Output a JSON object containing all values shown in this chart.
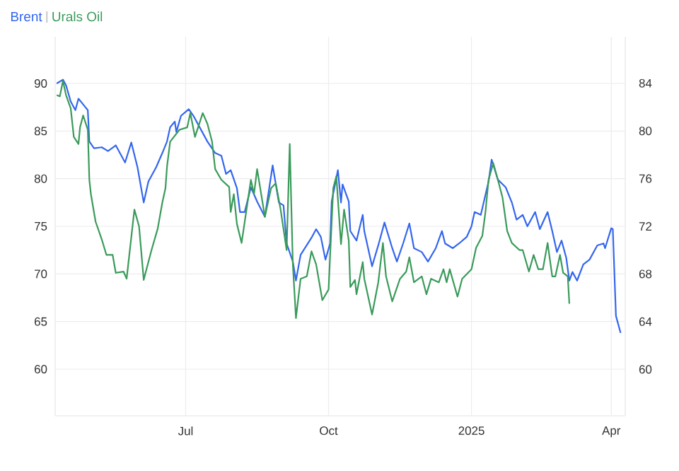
{
  "chart_data": {
    "type": "line",
    "xlim": [
      "2024-04-08",
      "2025-04-10"
    ],
    "xticks": [
      {
        "value": "2024-07-01",
        "label": "Jul"
      },
      {
        "value": "2024-10-01",
        "label": "Oct"
      },
      {
        "value": "2025-01-01",
        "label": "2025"
      },
      {
        "value": "2025-04-01",
        "label": "Apr"
      }
    ],
    "ylim": [
      55.1,
      94.9
    ],
    "yticks": [
      60,
      65,
      70,
      75,
      80,
      85,
      90
    ],
    "y2lim": [
      56.1,
      87.9
    ],
    "y2ticks": [
      60,
      64,
      68,
      72,
      76,
      80,
      84
    ],
    "grid": true,
    "legend": "top left",
    "marker": "none",
    "line_style": "solid",
    "series": [
      {
        "name": "Brent",
        "color": "#3366ee",
        "x": [
          "2024-04-09",
          "2024-04-13",
          "2024-04-15",
          "2024-04-18",
          "2024-04-21",
          "2024-04-23",
          "2024-04-26",
          "2024-04-29",
          "2024-04-30",
          "2024-05-03",
          "2024-05-08",
          "2024-05-12",
          "2024-05-17",
          "2024-05-23",
          "2024-05-27",
          "2024-05-31",
          "2024-06-04",
          "2024-06-07",
          "2024-06-12",
          "2024-06-16",
          "2024-06-19",
          "2024-06-21",
          "2024-06-24",
          "2024-06-25",
          "2024-06-28",
          "2024-07-03",
          "2024-07-06",
          "2024-07-15",
          "2024-07-20",
          "2024-07-24",
          "2024-07-27",
          "2024-07-30",
          "2024-08-03",
          "2024-08-05",
          "2024-08-08",
          "2024-08-12",
          "2024-08-16",
          "2024-08-21",
          "2024-08-26",
          "2024-08-30",
          "2024-09-02",
          "2024-09-04",
          "2024-09-08",
          "2024-09-10",
          "2024-09-13",
          "2024-09-20",
          "2024-09-23",
          "2024-09-26",
          "2024-09-29",
          "2024-10-02",
          "2024-10-03",
          "2024-10-07",
          "2024-10-09",
          "2024-10-10",
          "2024-10-14",
          "2024-10-15",
          "2024-10-19",
          "2024-10-23",
          "2024-10-24",
          "2024-10-29",
          "2024-11-02",
          "2024-11-06",
          "2024-11-11",
          "2024-11-14",
          "2024-11-18",
          "2024-11-22",
          "2024-11-25",
          "2024-11-30",
          "2024-12-04",
          "2024-12-09",
          "2024-12-13",
          "2024-12-15",
          "2024-12-20",
          "2024-12-24",
          "2024-12-29",
          "2025-01-01",
          "2025-01-03",
          "2025-01-07",
          "2025-01-12",
          "2025-01-14",
          "2025-01-18",
          "2025-01-23",
          "2025-01-27",
          "2025-01-30",
          "2025-02-03",
          "2025-02-06",
          "2025-02-11",
          "2025-02-14",
          "2025-02-19",
          "2025-02-22",
          "2025-02-25",
          "2025-02-28",
          "2025-03-03",
          "2025-03-05",
          "2025-03-07",
          "2025-03-10",
          "2025-03-14",
          "2025-03-18",
          "2025-03-23",
          "2025-03-27",
          "2025-03-28",
          "2025-04-01",
          "2025-04-02",
          "2025-04-04",
          "2025-04-07"
        ],
        "values": [
          90.0,
          90.4,
          89.8,
          88.1,
          87.2,
          88.4,
          87.8,
          87.2,
          83.9,
          83.2,
          83.3,
          82.9,
          83.5,
          81.7,
          83.8,
          81.2,
          77.5,
          79.7,
          81.2,
          82.7,
          83.9,
          85.4,
          86.0,
          84.9,
          86.6,
          87.3,
          86.6,
          83.9,
          82.7,
          82.4,
          80.5,
          80.9,
          79.0,
          76.5,
          76.5,
          79.1,
          77.6,
          76.0,
          81.4,
          77.5,
          77.2,
          73.2,
          71.3,
          69.3,
          72.0,
          73.8,
          74.7,
          73.9,
          71.5,
          73.2,
          77.6,
          80.9,
          77.5,
          79.4,
          77.6,
          74.5,
          73.5,
          76.2,
          74.5,
          70.8,
          73.0,
          75.4,
          72.7,
          71.3,
          73.2,
          75.3,
          72.7,
          72.3,
          71.3,
          72.7,
          74.5,
          73.2,
          72.7,
          73.2,
          73.9,
          75.0,
          76.5,
          76.2,
          79.7,
          82.0,
          79.9,
          79.1,
          77.5,
          75.7,
          76.2,
          75.0,
          76.5,
          74.7,
          76.5,
          74.5,
          72.3,
          73.5,
          71.7,
          69.3,
          70.2,
          69.3,
          71.0,
          71.5,
          73.0,
          73.2,
          72.7,
          74.8,
          74.7,
          65.6,
          63.8
        ]
      },
      {
        "name": "Urals Oil",
        "color": "#3a9a5a",
        "axis": "y2",
        "x": [
          "2024-04-09",
          "2024-04-11",
          "2024-04-13",
          "2024-04-15",
          "2024-04-18",
          "2024-04-20",
          "2024-04-23",
          "2024-04-24",
          "2024-04-26",
          "2024-04-29",
          "2024-04-30",
          "2024-05-01",
          "2024-05-04",
          "2024-05-08",
          "2024-05-11",
          "2024-05-15",
          "2024-05-17",
          "2024-05-22",
          "2024-05-24",
          "2024-05-29",
          "2024-06-01",
          "2024-06-04",
          "2024-06-09",
          "2024-06-13",
          "2024-06-16",
          "2024-06-18",
          "2024-06-19",
          "2024-06-21",
          "2024-06-27",
          "2024-07-02",
          "2024-07-04",
          "2024-07-07",
          "2024-07-12",
          "2024-07-15",
          "2024-07-18",
          "2024-07-20",
          "2024-07-24",
          "2024-07-29",
          "2024-07-30",
          "2024-08-01",
          "2024-08-03",
          "2024-08-06",
          "2024-08-12",
          "2024-08-14",
          "2024-08-16",
          "2024-08-21",
          "2024-08-25",
          "2024-08-28",
          "2024-08-31",
          "2024-09-04",
          "2024-09-06",
          "2024-09-08",
          "2024-09-10",
          "2024-09-13",
          "2024-09-17",
          "2024-09-20",
          "2024-09-23",
          "2024-09-27",
          "2024-10-01",
          "2024-10-04",
          "2024-10-06",
          "2024-10-09",
          "2024-10-11",
          "2024-10-14",
          "2024-10-15",
          "2024-10-18",
          "2024-10-19",
          "2024-10-23",
          "2024-10-24",
          "2024-10-29",
          "2024-11-02",
          "2024-11-05",
          "2024-11-07",
          "2024-11-11",
          "2024-11-16",
          "2024-11-20",
          "2024-11-22",
          "2024-11-25",
          "2024-11-30",
          "2024-12-03",
          "2024-12-06",
          "2024-12-11",
          "2024-12-14",
          "2024-12-16",
          "2024-12-18",
          "2024-12-23",
          "2024-12-26",
          "2025-01-01",
          "2025-01-04",
          "2025-01-08",
          "2025-01-10",
          "2025-01-12",
          "2025-01-15",
          "2025-01-18",
          "2025-01-21",
          "2025-01-24",
          "2025-01-27",
          "2025-02-01",
          "2025-02-03",
          "2025-02-07",
          "2025-02-10",
          "2025-02-13",
          "2025-02-16",
          "2025-02-19",
          "2025-02-22",
          "2025-02-24",
          "2025-02-27",
          "2025-03-01",
          "2025-03-04",
          "2025-03-05"
        ],
        "values": [
          83.0,
          82.9,
          84.2,
          83.0,
          81.9,
          79.5,
          78.9,
          80.3,
          81.3,
          80.1,
          75.9,
          74.7,
          72.4,
          70.9,
          69.6,
          69.6,
          68.1,
          68.2,
          67.6,
          73.4,
          72.0,
          67.5,
          70.0,
          71.8,
          74.0,
          75.2,
          77.0,
          79.1,
          80.1,
          80.3,
          81.5,
          79.5,
          81.5,
          80.6,
          79.1,
          76.8,
          75.9,
          75.3,
          73.2,
          74.7,
          72.2,
          70.6,
          75.9,
          74.7,
          76.8,
          72.8,
          75.2,
          75.6,
          73.5,
          70.0,
          78.9,
          68.8,
          64.3,
          67.6,
          67.8,
          69.9,
          68.8,
          65.8,
          66.7,
          75.2,
          76.2,
          70.5,
          73.4,
          70.8,
          66.9,
          67.5,
          66.3,
          69.0,
          67.6,
          64.6,
          67.3,
          70.6,
          67.8,
          65.7,
          67.6,
          68.2,
          69.4,
          67.3,
          67.8,
          66.3,
          67.6,
          67.3,
          68.4,
          67.3,
          68.4,
          66.1,
          67.6,
          68.4,
          70.2,
          71.2,
          73.2,
          75.9,
          77.3,
          75.9,
          74.4,
          71.6,
          70.6,
          70.0,
          70.0,
          68.2,
          69.6,
          68.4,
          68.4,
          70.6,
          67.8,
          67.8,
          69.6,
          68.1,
          67.8,
          65.5
        ]
      }
    ]
  }
}
